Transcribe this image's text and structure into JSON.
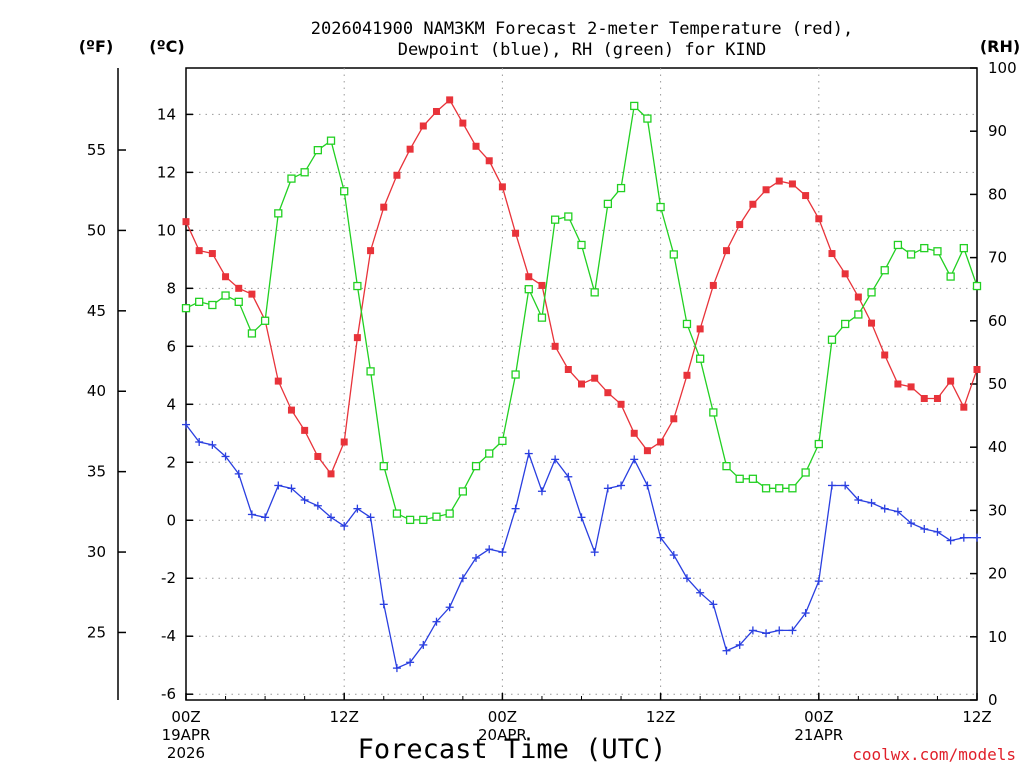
{
  "title_line1": "2026041900 NAM3KM Forecast 2-meter Temperature (red),",
  "title_line2": "Dewpoint (blue), RH (green) for KIND",
  "unit_f": "(ºF)",
  "unit_c": "(ºC)",
  "unit_rh": "(RH)",
  "credit": "coolwx.com/models",
  "colors": {
    "temperature": "#e8333a",
    "dewpoint": "#2a3fe0",
    "rh": "#22d022",
    "credit": "#e0202a",
    "grid": "#9a9a9a"
  },
  "chart_data": {
    "type": "line",
    "title": "2026041900 NAM3KM Forecast 2-meter Temperature (red), Dewpoint (blue), RH (green) for KIND",
    "xlabel": "Forecast Time (UTC)",
    "ylabel_left_f": "(ºF)",
    "ylabel_left_c": "(ºC)",
    "ylabel_right": "(RH)",
    "x_unit": "forecast hour",
    "xlim": [
      0,
      60
    ],
    "ylim_c": [
      -6.2,
      15.6
    ],
    "ylim_rh": [
      0,
      100
    ],
    "ylim_f": [
      20.8,
      60.1
    ],
    "celsius_ticks": [
      "-6",
      "-4",
      "-2",
      "0",
      "2",
      "4",
      "6",
      "8",
      "10",
      "12",
      "14"
    ],
    "fahrenheit_ticks": [
      "25",
      "30",
      "35",
      "40",
      "45",
      "50",
      "55"
    ],
    "rh_ticks": [
      "0",
      "10",
      "20",
      "30",
      "40",
      "50",
      "60",
      "70",
      "80",
      "90",
      "100"
    ],
    "x_ticks": [
      {
        "hour": 0,
        "lines": [
          "00Z",
          "19APR",
          "2026"
        ]
      },
      {
        "hour": 12,
        "lines": [
          "12Z"
        ]
      },
      {
        "hour": 24,
        "lines": [
          "00Z",
          "20APR"
        ]
      },
      {
        "hour": 36,
        "lines": [
          "12Z"
        ]
      },
      {
        "hour": 48,
        "lines": [
          "00Z",
          "21APR"
        ]
      },
      {
        "hour": 60,
        "lines": [
          "12Z"
        ]
      }
    ],
    "grid": true,
    "series": [
      {
        "name": "2-meter Temperature",
        "unit": "C",
        "color": "red",
        "marker": "filled-square",
        "x": [
          0,
          1,
          2,
          3,
          4,
          5,
          6,
          7,
          8,
          9,
          10,
          11,
          12,
          13,
          14,
          15,
          16,
          17,
          18,
          19,
          20,
          21,
          22,
          23,
          24,
          25,
          26,
          27,
          28,
          29,
          30,
          31,
          32,
          33,
          34,
          35,
          36,
          37,
          38,
          39,
          40,
          41,
          42,
          43,
          44,
          45,
          46,
          47,
          48,
          49,
          50,
          51,
          52,
          53,
          54,
          55,
          56,
          57,
          58,
          59,
          60
        ],
        "values": [
          10.3,
          9.3,
          9.2,
          8.4,
          8.0,
          7.8,
          6.9,
          4.8,
          3.8,
          3.1,
          2.2,
          1.6,
          2.7,
          6.3,
          9.3,
          10.8,
          11.9,
          12.8,
          13.6,
          14.1,
          14.5,
          13.7,
          12.9,
          12.4,
          11.5,
          9.9,
          8.4,
          8.1,
          6.0,
          5.2,
          4.7,
          4.9,
          4.4,
          4.0,
          3.0,
          2.4,
          2.7,
          3.5,
          5.0,
          6.6,
          8.1,
          9.3,
          10.2,
          10.9,
          11.4,
          11.7,
          11.6,
          11.2,
          10.4,
          9.2,
          8.5,
          7.7,
          6.8,
          5.7,
          4.7,
          4.6,
          4.2,
          4.2,
          4.8,
          3.9,
          5.2
        ]
      },
      {
        "name": "Dewpoint",
        "unit": "C",
        "color": "blue",
        "marker": "plus",
        "x": [
          0,
          1,
          2,
          3,
          4,
          5,
          6,
          7,
          8,
          9,
          10,
          11,
          12,
          13,
          14,
          15,
          16,
          17,
          18,
          19,
          20,
          21,
          22,
          23,
          24,
          25,
          26,
          27,
          28,
          29,
          30,
          31,
          32,
          33,
          34,
          35,
          36,
          37,
          38,
          39,
          40,
          41,
          42,
          43,
          44,
          45,
          46,
          47,
          48,
          49,
          50,
          51,
          52,
          53,
          54,
          55,
          56,
          57,
          58,
          59,
          60
        ],
        "values": [
          3.3,
          2.7,
          2.6,
          2.2,
          1.6,
          0.2,
          0.1,
          1.2,
          1.1,
          0.7,
          0.5,
          0.1,
          -0.2,
          0.4,
          0.1,
          -2.9,
          -5.1,
          -4.9,
          -4.3,
          -3.5,
          -3.0,
          -2.0,
          -1.3,
          -1.0,
          -1.1,
          0.4,
          2.3,
          1.0,
          2.1,
          1.5,
          0.1,
          -1.1,
          1.1,
          1.2,
          2.1,
          1.2,
          -0.6,
          -1.2,
          -2.0,
          -2.5,
          -2.9,
          -4.5,
          -4.3,
          -3.8,
          -3.9,
          -3.8,
          -3.8,
          -3.2,
          -2.1,
          1.2,
          1.2,
          0.7,
          0.6,
          0.4,
          0.3,
          -0.1,
          -0.3,
          -0.4,
          -0.7,
          -0.6,
          -0.6
        ]
      },
      {
        "name": "Relative Humidity",
        "unit": "%",
        "color": "green",
        "marker": "open-square",
        "x": [
          0,
          1,
          2,
          3,
          4,
          5,
          6,
          7,
          8,
          9,
          10,
          11,
          12,
          13,
          14,
          15,
          16,
          17,
          18,
          19,
          20,
          21,
          22,
          23,
          24,
          25,
          26,
          27,
          28,
          29,
          30,
          31,
          32,
          33,
          34,
          35,
          36,
          37,
          38,
          39,
          40,
          41,
          42,
          43,
          44,
          45,
          46,
          47,
          48,
          49,
          50,
          51,
          52,
          53,
          54,
          55,
          56,
          57,
          58,
          59,
          60
        ],
        "values": [
          62,
          63,
          62.5,
          64,
          63,
          58,
          60,
          77,
          82.5,
          83.5,
          87,
          88.5,
          80.5,
          65.5,
          52,
          37,
          29.5,
          28.5,
          28.5,
          29,
          29.5,
          33,
          37,
          39,
          41,
          51.5,
          65,
          60.5,
          76,
          76.5,
          72,
          64.5,
          78.5,
          81,
          94,
          92,
          78,
          70.5,
          59.5,
          54,
          45.5,
          37,
          35,
          35,
          33.5,
          33.5,
          33.5,
          36,
          40.5,
          57,
          59.5,
          61,
          64.5,
          68,
          72,
          70.5,
          71.5,
          71,
          67,
          71.5,
          65.5
        ]
      }
    ]
  }
}
